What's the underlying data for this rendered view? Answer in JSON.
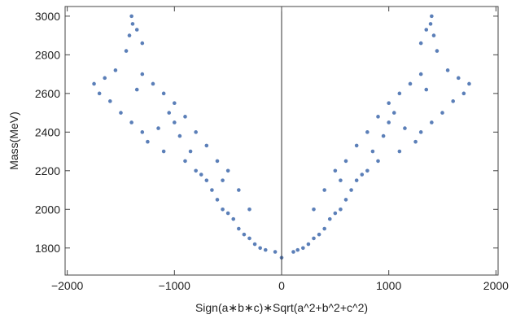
{
  "chart_data": {
    "type": "scatter",
    "xlabel": "Sign(a∗b∗c)∗Sqrt(a^2+b^2+c^2)",
    "ylabel": "Mass(MeV)",
    "xlim": [
      -2020,
      2020
    ],
    "ylim": [
      1660,
      3050
    ],
    "xticks": [
      -2000,
      -1000,
      0,
      1000,
      2000
    ],
    "xtick_labels": [
      "−2000",
      "−1000",
      "0",
      "1000",
      "2000"
    ],
    "yticks": [
      1800,
      2000,
      2200,
      2400,
      2600,
      2800,
      3000
    ],
    "ytick_labels": [
      "1800",
      "2000",
      "2200",
      "2400",
      "2600",
      "2800",
      "3000"
    ],
    "grid": false,
    "vertical_line_x": 0,
    "point_color": "#5b7fb8",
    "series": [
      {
        "points": [
          [
            -1400,
            3000
          ],
          [
            -1390,
            2960
          ],
          [
            -1350,
            2930
          ],
          [
            -1420,
            2900
          ],
          [
            -1300,
            2860
          ],
          [
            -1450,
            2820
          ],
          [
            -1550,
            2720
          ],
          [
            -1650,
            2680
          ],
          [
            -1750,
            2650
          ],
          [
            -1700,
            2600
          ],
          [
            -1600,
            2560
          ],
          [
            -1500,
            2500
          ],
          [
            -1400,
            2450
          ],
          [
            -1300,
            2400
          ],
          [
            -1250,
            2350
          ],
          [
            -1150,
            2420
          ],
          [
            -1100,
            2300
          ],
          [
            -1050,
            2500
          ],
          [
            -1000,
            2450
          ],
          [
            -950,
            2380
          ],
          [
            -900,
            2250
          ],
          [
            -850,
            2300
          ],
          [
            -800,
            2200
          ],
          [
            -750,
            2180
          ],
          [
            -700,
            2150
          ],
          [
            -650,
            2100
          ],
          [
            -600,
            2050
          ],
          [
            -550,
            2000
          ],
          [
            -500,
            1980
          ],
          [
            -450,
            1950
          ],
          [
            -400,
            1900
          ],
          [
            -350,
            1870
          ],
          [
            -300,
            1850
          ],
          [
            -250,
            1820
          ],
          [
            -200,
            1800
          ],
          [
            -150,
            1790
          ],
          [
            -60,
            1780
          ],
          [
            -1200,
            2650
          ],
          [
            -1100,
            2600
          ],
          [
            -1000,
            2550
          ],
          [
            -1300,
            2700
          ],
          [
            -1350,
            2620
          ],
          [
            -900,
            2480
          ],
          [
            -800,
            2400
          ],
          [
            -700,
            2330
          ],
          [
            -600,
            2250
          ],
          [
            -500,
            2200
          ],
          [
            -400,
            2100
          ],
          [
            -300,
            2000
          ],
          [
            -550,
            2150
          ],
          [
            1400,
            3000
          ],
          [
            1390,
            2960
          ],
          [
            1350,
            2930
          ],
          [
            1420,
            2900
          ],
          [
            1300,
            2860
          ],
          [
            1450,
            2820
          ],
          [
            1550,
            2720
          ],
          [
            1650,
            2680
          ],
          [
            1750,
            2650
          ],
          [
            1700,
            2600
          ],
          [
            1600,
            2560
          ],
          [
            1500,
            2500
          ],
          [
            1400,
            2450
          ],
          [
            1300,
            2400
          ],
          [
            1250,
            2350
          ],
          [
            1150,
            2420
          ],
          [
            1100,
            2300
          ],
          [
            1050,
            2500
          ],
          [
            1000,
            2450
          ],
          [
            950,
            2380
          ],
          [
            900,
            2250
          ],
          [
            850,
            2300
          ],
          [
            800,
            2200
          ],
          [
            750,
            2180
          ],
          [
            700,
            2150
          ],
          [
            650,
            2100
          ],
          [
            600,
            2050
          ],
          [
            550,
            2000
          ],
          [
            500,
            1980
          ],
          [
            450,
            1950
          ],
          [
            400,
            1900
          ],
          [
            350,
            1870
          ],
          [
            300,
            1850
          ],
          [
            250,
            1820
          ],
          [
            200,
            1800
          ],
          [
            150,
            1790
          ],
          [
            110,
            1780
          ],
          [
            1200,
            2650
          ],
          [
            1100,
            2600
          ],
          [
            1000,
            2550
          ],
          [
            1300,
            2700
          ],
          [
            1350,
            2620
          ],
          [
            900,
            2480
          ],
          [
            800,
            2400
          ],
          [
            700,
            2330
          ],
          [
            600,
            2250
          ],
          [
            500,
            2200
          ],
          [
            400,
            2100
          ],
          [
            300,
            2000
          ],
          [
            550,
            2150
          ],
          [
            0,
            1750
          ]
        ]
      }
    ]
  }
}
